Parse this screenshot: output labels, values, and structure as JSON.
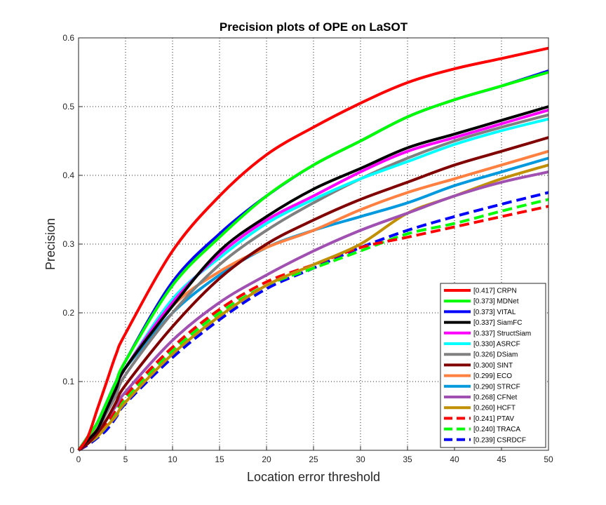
{
  "chart_data": {
    "type": "line",
    "title": "Precision plots of OPE on LaSOT",
    "xlabel": "Location error threshold",
    "ylabel": "Precision",
    "xlim": [
      0,
      50
    ],
    "ylim": [
      0,
      0.6
    ],
    "xticks": [
      "0",
      "5",
      "10",
      "15",
      "20",
      "25",
      "30",
      "35",
      "40",
      "45",
      "50"
    ],
    "yticks": [
      "0",
      "0.1",
      "0.2",
      "0.3",
      "0.4",
      "0.5",
      "0.6"
    ],
    "grid": true,
    "legend_position": "bottom-right",
    "x": [
      0,
      1,
      2,
      3,
      4,
      5,
      10,
      15,
      20,
      25,
      30,
      35,
      40,
      45,
      50
    ],
    "series": [
      {
        "name": "[0.417] CRPN",
        "color": "#ff0000",
        "dashed": false,
        "values": [
          0,
          0.02,
          0.06,
          0.1,
          0.14,
          0.17,
          0.29,
          0.37,
          0.43,
          0.47,
          0.505,
          0.535,
          0.555,
          0.57,
          0.585
        ]
      },
      {
        "name": "[0.373] MDNet",
        "color": "#00ff00",
        "dashed": false,
        "values": [
          0,
          0.02,
          0.04,
          0.07,
          0.1,
          0.13,
          0.24,
          0.31,
          0.37,
          0.415,
          0.45,
          0.485,
          0.51,
          0.53,
          0.55
        ]
      },
      {
        "name": "[0.373] VITAL",
        "color": "#0000ff",
        "dashed": false,
        "values": [
          0,
          0.02,
          0.04,
          0.07,
          0.1,
          0.13,
          0.245,
          0.315,
          0.37,
          0.415,
          0.45,
          0.485,
          0.51,
          0.53,
          0.552
        ]
      },
      {
        "name": "[0.337] SiamFC",
        "color": "#000000",
        "dashed": false,
        "values": [
          0,
          0.015,
          0.03,
          0.06,
          0.09,
          0.12,
          0.21,
          0.29,
          0.34,
          0.38,
          0.41,
          0.44,
          0.46,
          0.48,
          0.5
        ]
      },
      {
        "name": "[0.337] StructSiam",
        "color": "#ff00ff",
        "dashed": false,
        "values": [
          0,
          0.015,
          0.03,
          0.06,
          0.09,
          0.12,
          0.215,
          0.285,
          0.335,
          0.37,
          0.405,
          0.435,
          0.455,
          0.475,
          0.495
        ]
      },
      {
        "name": "[0.330] ASRCF",
        "color": "#00ffff",
        "dashed": false,
        "values": [
          0,
          0.02,
          0.04,
          0.07,
          0.1,
          0.12,
          0.22,
          0.28,
          0.33,
          0.365,
          0.395,
          0.42,
          0.445,
          0.465,
          0.482
        ]
      },
      {
        "name": "[0.326] DSiam",
        "color": "#808080",
        "dashed": false,
        "values": [
          0,
          0.015,
          0.03,
          0.055,
          0.08,
          0.11,
          0.2,
          0.27,
          0.32,
          0.36,
          0.395,
          0.425,
          0.45,
          0.47,
          0.488
        ]
      },
      {
        "name": "[0.300] SINT",
        "color": "#800000",
        "dashed": false,
        "values": [
          0,
          0.01,
          0.025,
          0.045,
          0.07,
          0.095,
          0.18,
          0.25,
          0.3,
          0.335,
          0.365,
          0.39,
          0.415,
          0.435,
          0.455
        ]
      },
      {
        "name": "[0.299] ECO",
        "color": "#ff8040",
        "dashed": false,
        "values": [
          0,
          0.015,
          0.04,
          0.07,
          0.1,
          0.12,
          0.21,
          0.26,
          0.295,
          0.32,
          0.35,
          0.375,
          0.395,
          0.415,
          0.435
        ]
      },
      {
        "name": "[0.290] STRCF",
        "color": "#0099dd",
        "dashed": false,
        "values": [
          0,
          0.015,
          0.04,
          0.07,
          0.1,
          0.12,
          0.2,
          0.255,
          0.295,
          0.32,
          0.34,
          0.36,
          0.385,
          0.405,
          0.425
        ]
      },
      {
        "name": "[0.268] CFNet",
        "color": "#a050b0",
        "dashed": false,
        "values": [
          0,
          0.01,
          0.025,
          0.045,
          0.065,
          0.085,
          0.16,
          0.215,
          0.255,
          0.29,
          0.32,
          0.345,
          0.37,
          0.39,
          0.405
        ]
      },
      {
        "name": "[0.260] HCFT",
        "color": "#c09000",
        "dashed": false,
        "values": [
          0,
          0.01,
          0.02,
          0.035,
          0.05,
          0.07,
          0.14,
          0.195,
          0.24,
          0.27,
          0.3,
          0.345,
          0.37,
          0.395,
          0.415
        ]
      },
      {
        "name": "[0.241] PTAV",
        "color": "#ff0000",
        "dashed": true,
        "values": [
          0,
          0.01,
          0.025,
          0.04,
          0.06,
          0.08,
          0.15,
          0.205,
          0.245,
          0.27,
          0.295,
          0.31,
          0.325,
          0.34,
          0.355
        ]
      },
      {
        "name": "[0.240] TRACA",
        "color": "#00ff00",
        "dashed": true,
        "values": [
          0,
          0.01,
          0.02,
          0.035,
          0.055,
          0.075,
          0.145,
          0.2,
          0.24,
          0.265,
          0.29,
          0.315,
          0.33,
          0.348,
          0.365
        ]
      },
      {
        "name": "[0.239] CSRDCF",
        "color": "#0000ff",
        "dashed": true,
        "values": [
          0,
          0.008,
          0.018,
          0.03,
          0.048,
          0.068,
          0.135,
          0.19,
          0.235,
          0.265,
          0.295,
          0.32,
          0.34,
          0.358,
          0.375
        ]
      }
    ]
  }
}
